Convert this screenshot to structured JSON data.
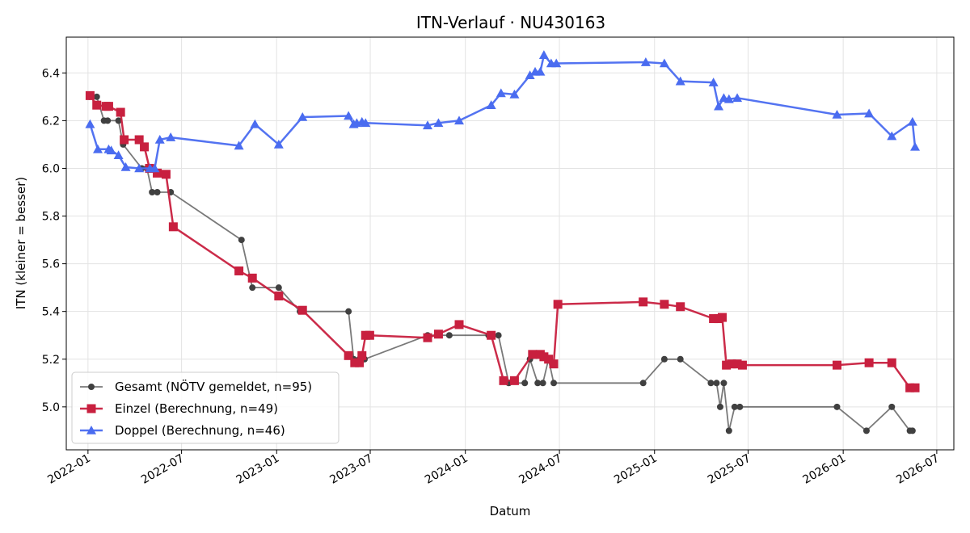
{
  "chart_data": {
    "type": "line",
    "title": "ITN-Verlauf · NU430163",
    "xlabel": "Datum",
    "ylabel": "ITN  (kleiner = besser)",
    "xlim": [
      "2021-11-20",
      "2026-08-03"
    ],
    "ylim": [
      4.82,
      6.55
    ],
    "x_ticks": [
      "2022-01",
      "2022-07",
      "2023-01",
      "2023-07",
      "2024-01",
      "2024-07",
      "2025-01",
      "2025-07",
      "2026-01",
      "2026-07"
    ],
    "y_ticks": [
      5.0,
      5.2,
      5.4,
      5.6,
      5.8,
      6.0,
      6.2,
      6.4
    ],
    "grid": true,
    "legend_position": "lower-left",
    "series": [
      {
        "name": "Gesamt (NÖTV gemeldet, n=95)",
        "color": "#404040",
        "marker": "circle",
        "points": [
          [
            "2022-01-04",
            6.3
          ],
          [
            "2022-01-18",
            6.3
          ],
          [
            "2022-02-01",
            6.2
          ],
          [
            "2022-02-08",
            6.2
          ],
          [
            "2022-03-01",
            6.2
          ],
          [
            "2022-03-10",
            6.1
          ],
          [
            "2022-04-15",
            6.0
          ],
          [
            "2022-04-25",
            6.0
          ],
          [
            "2022-05-05",
            5.9
          ],
          [
            "2022-05-15",
            5.9
          ],
          [
            "2022-06-10",
            5.9
          ],
          [
            "2022-10-25",
            5.7
          ],
          [
            "2022-11-15",
            5.5
          ],
          [
            "2023-01-05",
            5.5
          ],
          [
            "2023-02-15",
            5.4
          ],
          [
            "2023-05-20",
            5.4
          ],
          [
            "2023-05-30",
            5.2
          ],
          [
            "2023-06-10",
            5.2
          ],
          [
            "2023-06-20",
            5.2
          ],
          [
            "2023-10-20",
            5.3
          ],
          [
            "2023-12-01",
            5.3
          ],
          [
            "2024-02-15",
            5.3
          ],
          [
            "2024-03-05",
            5.3
          ],
          [
            "2024-03-25",
            5.1
          ],
          [
            "2024-04-25",
            5.1
          ],
          [
            "2024-05-05",
            5.2
          ],
          [
            "2024-05-20",
            5.1
          ],
          [
            "2024-05-30",
            5.1
          ],
          [
            "2024-06-10",
            5.2
          ],
          [
            "2024-06-20",
            5.1
          ],
          [
            "2024-12-10",
            5.1
          ],
          [
            "2025-01-20",
            5.2
          ],
          [
            "2025-02-20",
            5.2
          ],
          [
            "2025-04-20",
            5.1
          ],
          [
            "2025-05-01",
            5.1
          ],
          [
            "2025-05-08",
            5.0
          ],
          [
            "2025-05-15",
            5.1
          ],
          [
            "2025-05-25",
            4.9
          ],
          [
            "2025-06-05",
            5.0
          ],
          [
            "2025-06-15",
            5.0
          ],
          [
            "2025-12-20",
            5.0
          ],
          [
            "2026-02-15",
            4.9
          ],
          [
            "2026-04-05",
            5.0
          ],
          [
            "2026-05-10",
            4.9
          ],
          [
            "2026-05-15",
            4.9
          ]
        ]
      },
      {
        "name": "Einzel (Berechnung, n=49)",
        "color": "#c8203f",
        "marker": "square",
        "points": [
          [
            "2022-01-05",
            6.305
          ],
          [
            "2022-01-18",
            6.265
          ],
          [
            "2022-02-05",
            6.26
          ],
          [
            "2022-02-10",
            6.26
          ],
          [
            "2022-03-05",
            6.235
          ],
          [
            "2022-03-12",
            6.12
          ],
          [
            "2022-04-10",
            6.12
          ],
          [
            "2022-04-20",
            6.09
          ],
          [
            "2022-04-30",
            6.0
          ],
          [
            "2022-05-15",
            5.98
          ],
          [
            "2022-06-01",
            5.975
          ],
          [
            "2022-06-15",
            5.755
          ],
          [
            "2022-10-20",
            5.57
          ],
          [
            "2022-11-15",
            5.54
          ],
          [
            "2023-01-05",
            5.465
          ],
          [
            "2023-02-20",
            5.405
          ],
          [
            "2023-05-20",
            5.215
          ],
          [
            "2023-06-01",
            5.185
          ],
          [
            "2023-06-10",
            5.185
          ],
          [
            "2023-06-15",
            5.215
          ],
          [
            "2023-06-22",
            5.3
          ],
          [
            "2023-06-30",
            5.3
          ],
          [
            "2023-10-20",
            5.29
          ],
          [
            "2023-11-10",
            5.305
          ],
          [
            "2023-12-20",
            5.345
          ],
          [
            "2024-02-20",
            5.3
          ],
          [
            "2024-03-15",
            5.11
          ],
          [
            "2024-04-05",
            5.11
          ],
          [
            "2024-05-10",
            5.22
          ],
          [
            "2024-05-25",
            5.22
          ],
          [
            "2024-06-01",
            5.21
          ],
          [
            "2024-06-10",
            5.2
          ],
          [
            "2024-06-20",
            5.18
          ],
          [
            "2024-06-28",
            5.43
          ],
          [
            "2024-12-10",
            5.44
          ],
          [
            "2025-01-20",
            5.43
          ],
          [
            "2025-02-20",
            5.42
          ],
          [
            "2025-04-25",
            5.37
          ],
          [
            "2025-05-05",
            5.37
          ],
          [
            "2025-05-12",
            5.375
          ],
          [
            "2025-05-20",
            5.175
          ],
          [
            "2025-05-30",
            5.18
          ],
          [
            "2025-06-10",
            5.18
          ],
          [
            "2025-06-20",
            5.175
          ],
          [
            "2025-12-20",
            5.175
          ],
          [
            "2026-02-20",
            5.185
          ],
          [
            "2026-04-05",
            5.185
          ],
          [
            "2026-05-10",
            5.08
          ],
          [
            "2026-05-20",
            5.08
          ]
        ]
      },
      {
        "name": "Doppel (Berechnung, n=46)",
        "color": "#4a6cf0",
        "marker": "triangle",
        "points": [
          [
            "2022-01-05",
            6.185
          ],
          [
            "2022-01-20",
            6.08
          ],
          [
            "2022-02-10",
            6.08
          ],
          [
            "2022-02-15",
            6.075
          ],
          [
            "2022-03-01",
            6.055
          ],
          [
            "2022-03-15",
            6.005
          ],
          [
            "2022-04-10",
            6.0
          ],
          [
            "2022-05-01",
            6.0
          ],
          [
            "2022-05-10",
            6.0
          ],
          [
            "2022-05-20",
            6.12
          ],
          [
            "2022-06-10",
            6.13
          ],
          [
            "2022-10-20",
            6.095
          ],
          [
            "2022-11-20",
            6.185
          ],
          [
            "2023-01-05",
            6.1
          ],
          [
            "2023-02-20",
            6.215
          ],
          [
            "2023-05-20",
            6.22
          ],
          [
            "2023-05-30",
            6.185
          ],
          [
            "2023-06-05",
            6.19
          ],
          [
            "2023-06-15",
            6.195
          ],
          [
            "2023-06-22",
            6.19
          ],
          [
            "2023-10-20",
            6.18
          ],
          [
            "2023-11-10",
            6.19
          ],
          [
            "2023-12-20",
            6.2
          ],
          [
            "2024-02-20",
            6.265
          ],
          [
            "2024-03-10",
            6.315
          ],
          [
            "2024-04-05",
            6.31
          ],
          [
            "2024-05-05",
            6.39
          ],
          [
            "2024-05-15",
            6.405
          ],
          [
            "2024-05-25",
            6.405
          ],
          [
            "2024-06-01",
            6.475
          ],
          [
            "2024-06-15",
            6.44
          ],
          [
            "2024-06-25",
            6.44
          ],
          [
            "2024-12-15",
            6.445
          ],
          [
            "2025-01-20",
            6.44
          ],
          [
            "2025-02-20",
            6.365
          ],
          [
            "2025-04-25",
            6.36
          ],
          [
            "2025-05-05",
            6.26
          ],
          [
            "2025-05-15",
            6.295
          ],
          [
            "2025-05-25",
            6.29
          ],
          [
            "2025-06-10",
            6.295
          ],
          [
            "2025-12-20",
            6.225
          ],
          [
            "2026-02-20",
            6.23
          ],
          [
            "2026-04-05",
            6.135
          ],
          [
            "2026-05-15",
            6.195
          ],
          [
            "2026-05-20",
            6.09
          ]
        ]
      }
    ]
  }
}
